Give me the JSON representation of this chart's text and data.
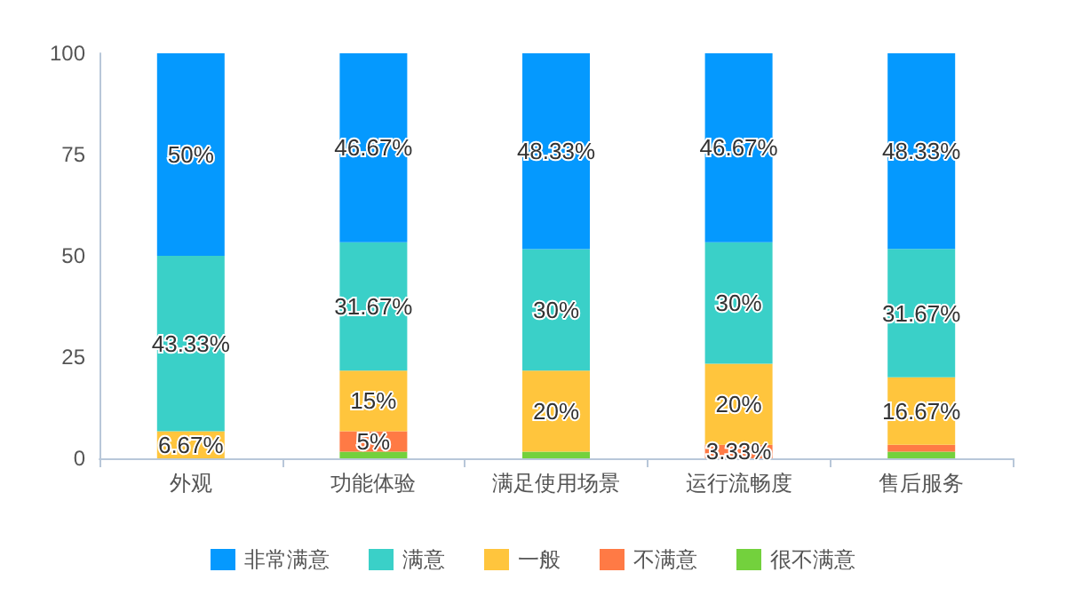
{
  "chart_data": {
    "type": "bar",
    "stacked": true,
    "categories": [
      "外观",
      "功能体验",
      "满足使用场景",
      "运行流畅度",
      "售后服务"
    ],
    "series": [
      {
        "name": "很不满意",
        "color": "#73d13d",
        "values": [
          0,
          1.67,
          1.67,
          0,
          1.67
        ],
        "value_labels": [
          null,
          null,
          null,
          null,
          null
        ]
      },
      {
        "name": "不满意",
        "color": "#ff7a45",
        "values": [
          0,
          5,
          0,
          3.33,
          1.67
        ],
        "value_labels": [
          null,
          "5%",
          null,
          "3.33%",
          null
        ]
      },
      {
        "name": "一般",
        "color": "#ffc53d",
        "values": [
          6.67,
          15,
          20,
          20,
          16.67
        ],
        "value_labels": [
          "6.67%",
          "15%",
          "20%",
          "20%",
          "16.67%"
        ]
      },
      {
        "name": "满意",
        "color": "#3ad0c8",
        "values": [
          43.33,
          31.67,
          30,
          30,
          31.67
        ],
        "value_labels": [
          "43.33%",
          "31.67%",
          "30%",
          "30%",
          "31.67%"
        ]
      },
      {
        "name": "非常满意",
        "color": "#0599fe",
        "values": [
          50,
          46.67,
          48.33,
          46.67,
          48.33
        ],
        "value_labels": [
          "50%",
          "46.67%",
          "48.33%",
          "46.67%",
          "48.33%"
        ]
      }
    ],
    "ylim": [
      0,
      100
    ],
    "yticks": [
      0,
      25,
      50,
      75,
      100
    ],
    "grid": false,
    "legend": "bottom"
  }
}
